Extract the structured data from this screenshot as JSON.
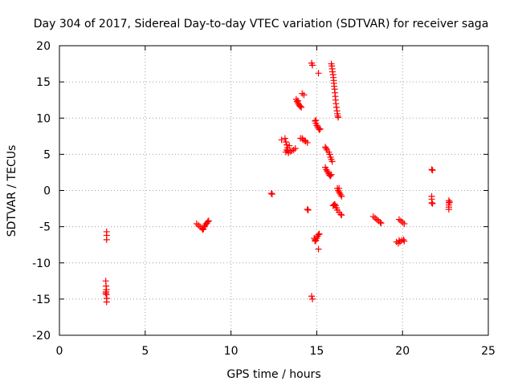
{
  "chart_data": {
    "type": "scatter",
    "title": "Day 304 of 2017, Sidereal Day-to-day VTEC variation (SDTVAR) for receiver saga",
    "xlabel": "GPS time / hours",
    "ylabel": "SDTVAR / TECUs",
    "xlim": [
      0,
      25
    ],
    "ylim": [
      -20,
      20
    ],
    "x_ticks": [
      0,
      5,
      10,
      15,
      20,
      25
    ],
    "y_ticks": [
      -20,
      -15,
      -10,
      -5,
      0,
      5,
      10,
      15,
      20
    ],
    "grid": true,
    "marker": "+",
    "color": "#ff0000",
    "series": [
      {
        "name": "SDTVAR",
        "points": [
          [
            2.75,
            -5.7
          ],
          [
            2.75,
            -6.2
          ],
          [
            2.75,
            -6.8
          ],
          [
            2.7,
            -12.5
          ],
          [
            2.72,
            -13.2
          ],
          [
            2.74,
            -13.7
          ],
          [
            2.72,
            -14.0
          ],
          [
            2.7,
            -14.2
          ],
          [
            2.74,
            -14.4
          ],
          [
            2.76,
            -14.9
          ],
          [
            2.75,
            -15.4
          ],
          [
            8.0,
            -4.6
          ],
          [
            8.1,
            -4.8
          ],
          [
            8.2,
            -5.0
          ],
          [
            8.3,
            -5.2
          ],
          [
            8.35,
            -5.4
          ],
          [
            8.4,
            -5.3
          ],
          [
            8.45,
            -5.0
          ],
          [
            8.5,
            -4.8
          ],
          [
            8.55,
            -4.6
          ],
          [
            8.6,
            -4.5
          ],
          [
            8.65,
            -4.3
          ],
          [
            8.7,
            -4.2
          ],
          [
            12.35,
            -0.4
          ],
          [
            12.4,
            -0.5
          ],
          [
            12.95,
            7.0
          ],
          [
            13.15,
            7.2
          ],
          [
            13.2,
            6.7
          ],
          [
            13.25,
            6.3
          ],
          [
            13.3,
            5.9
          ],
          [
            13.25,
            5.6
          ],
          [
            13.2,
            5.3
          ],
          [
            13.35,
            5.2
          ],
          [
            13.45,
            5.4
          ],
          [
            13.55,
            5.5
          ],
          [
            13.65,
            5.6
          ],
          [
            13.75,
            5.8
          ],
          [
            13.4,
            6.2
          ],
          [
            13.3,
            5.5
          ],
          [
            13.8,
            12.6
          ],
          [
            13.85,
            12.3
          ],
          [
            13.9,
            12.1
          ],
          [
            13.95,
            11.9
          ],
          [
            14.0,
            11.7
          ],
          [
            14.05,
            11.6
          ],
          [
            14.1,
            11.5
          ],
          [
            13.9,
            12.4
          ],
          [
            14.05,
            7.2
          ],
          [
            14.15,
            7.2
          ],
          [
            14.2,
            7.0
          ],
          [
            14.3,
            6.9
          ],
          [
            14.35,
            6.8
          ],
          [
            14.45,
            6.6
          ],
          [
            14.15,
            13.4
          ],
          [
            14.25,
            13.2
          ],
          [
            14.45,
            -2.6
          ],
          [
            14.5,
            -2.7
          ],
          [
            14.7,
            17.6
          ],
          [
            14.75,
            17.3
          ],
          [
            14.7,
            -14.6
          ],
          [
            14.75,
            -15.0
          ],
          [
            14.85,
            -6.6
          ],
          [
            14.9,
            -6.8
          ],
          [
            14.95,
            -6.9
          ],
          [
            15.0,
            -6.6
          ],
          [
            15.05,
            -6.3
          ],
          [
            15.1,
            -6.1
          ],
          [
            15.15,
            -6.0
          ],
          [
            14.9,
            -7.0
          ],
          [
            15.1,
            -8.1
          ],
          [
            14.9,
            9.6
          ],
          [
            14.95,
            9.3
          ],
          [
            15.0,
            9.0
          ],
          [
            15.05,
            8.8
          ],
          [
            15.1,
            8.6
          ],
          [
            15.15,
            8.4
          ],
          [
            15.2,
            8.5
          ],
          [
            14.95,
            9.7
          ],
          [
            15.1,
            16.2
          ],
          [
            15.5,
            6.0
          ],
          [
            15.55,
            5.8
          ],
          [
            15.6,
            5.6
          ],
          [
            15.7,
            5.3
          ],
          [
            15.75,
            5.0
          ],
          [
            15.8,
            4.6
          ],
          [
            15.85,
            4.3
          ],
          [
            15.9,
            4.0
          ],
          [
            15.5,
            3.2
          ],
          [
            15.55,
            2.9
          ],
          [
            15.6,
            2.7
          ],
          [
            15.65,
            2.5
          ],
          [
            15.7,
            2.3
          ],
          [
            15.75,
            2.1
          ],
          [
            15.8,
            2.0
          ],
          [
            15.85,
            2.2
          ],
          [
            15.85,
            17.5
          ],
          [
            15.88,
            17.2
          ],
          [
            15.9,
            16.8
          ],
          [
            15.92,
            16.4
          ],
          [
            15.95,
            16.0
          ],
          [
            15.97,
            15.6
          ],
          [
            15.99,
            15.2
          ],
          [
            16.0,
            14.8
          ],
          [
            16.02,
            14.4
          ],
          [
            16.04,
            14.0
          ],
          [
            16.06,
            13.5
          ],
          [
            16.08,
            13.0
          ],
          [
            16.1,
            12.5
          ],
          [
            16.12,
            12.0
          ],
          [
            16.15,
            11.5
          ],
          [
            16.18,
            11.0
          ],
          [
            16.2,
            10.6
          ],
          [
            16.22,
            10.3
          ],
          [
            16.25,
            10.1
          ],
          [
            15.95,
            -2.1
          ],
          [
            16.0,
            -2.0
          ],
          [
            16.05,
            -1.9
          ],
          [
            16.1,
            -2.1
          ],
          [
            16.15,
            -2.4
          ],
          [
            16.2,
            -2.7
          ],
          [
            16.3,
            -3.0
          ],
          [
            16.4,
            -3.3
          ],
          [
            16.45,
            -3.4
          ],
          [
            16.2,
            0.3
          ],
          [
            16.25,
            0.0
          ],
          [
            16.3,
            -0.2
          ],
          [
            16.35,
            -0.4
          ],
          [
            16.4,
            -0.6
          ],
          [
            16.45,
            -0.8
          ],
          [
            16.3,
            0.3
          ],
          [
            18.3,
            -3.6
          ],
          [
            18.4,
            -3.8
          ],
          [
            18.5,
            -4.0
          ],
          [
            18.6,
            -4.2
          ],
          [
            18.7,
            -4.4
          ],
          [
            18.75,
            -4.5
          ],
          [
            19.65,
            -7.1
          ],
          [
            19.75,
            -7.3
          ],
          [
            19.85,
            -7.1
          ],
          [
            19.95,
            -6.9
          ],
          [
            20.05,
            -6.8
          ],
          [
            20.1,
            -7.0
          ],
          [
            19.8,
            -6.9
          ],
          [
            19.8,
            -4.0
          ],
          [
            19.9,
            -4.2
          ],
          [
            20.0,
            -4.4
          ],
          [
            20.1,
            -4.6
          ],
          [
            21.7,
            -0.8
          ],
          [
            21.7,
            -1.2
          ],
          [
            21.7,
            -1.7
          ],
          [
            21.75,
            -1.8
          ],
          [
            21.7,
            2.9
          ],
          [
            21.75,
            2.8
          ],
          [
            22.7,
            -1.4
          ],
          [
            22.7,
            -1.7
          ],
          [
            22.7,
            -2.0
          ],
          [
            22.7,
            -2.3
          ],
          [
            22.7,
            -2.6
          ],
          [
            22.75,
            -1.6
          ]
        ]
      }
    ]
  }
}
